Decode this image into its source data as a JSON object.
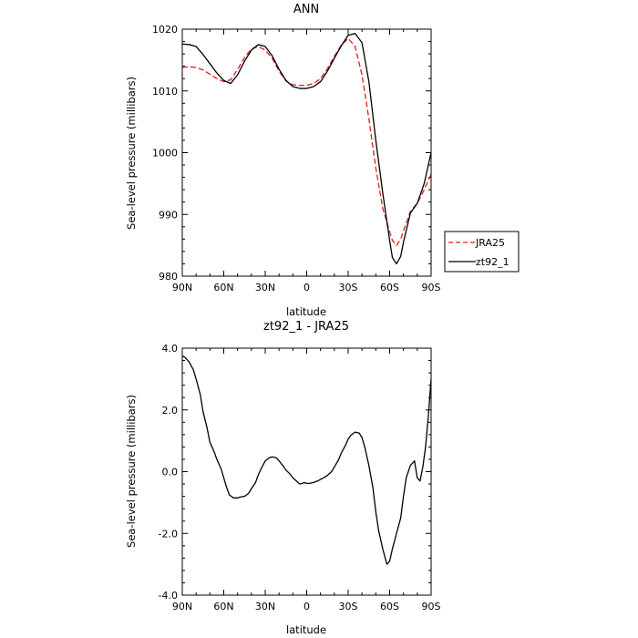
{
  "chart_data": [
    {
      "type": "line",
      "title": "ANN",
      "xlabel": "latitude",
      "ylabel": "Sea-level pressure (millibars)",
      "xlim": [
        90,
        -90
      ],
      "ylim": [
        980,
        1020
      ],
      "x_ticks": [
        90,
        60,
        30,
        0,
        -30,
        -60,
        -90
      ],
      "x_tick_labels": [
        "90N",
        "60N",
        "30N",
        "0",
        "30S",
        "60S",
        "90S"
      ],
      "y_ticks": [
        980,
        990,
        1000,
        1010,
        1020
      ],
      "y_tick_labels": [
        "980",
        "990",
        "1000",
        "1010",
        "1020"
      ],
      "legend_position": "outside-right",
      "series": [
        {
          "name": "JRA25",
          "color": "#e41a1c",
          "style": "dashed",
          "x": [
            90,
            85,
            80,
            75,
            70,
            65,
            60,
            55,
            50,
            45,
            40,
            35,
            30,
            25,
            20,
            15,
            10,
            5,
            0,
            -5,
            -10,
            -15,
            -20,
            -25,
            -30,
            -35,
            -40,
            -45,
            -50,
            -55,
            -60,
            -62,
            -65,
            -68,
            -70,
            -75,
            -80,
            -85,
            -90
          ],
          "values": [
            1013.8,
            1013.9,
            1013.8,
            1013.4,
            1012.7,
            1012.0,
            1011.5,
            1011.8,
            1013.5,
            1015.4,
            1016.8,
            1017.2,
            1016.6,
            1015.3,
            1013.2,
            1011.6,
            1011.0,
            1010.9,
            1010.9,
            1011.2,
            1012.0,
            1013.6,
            1015.6,
            1017.4,
            1018.5,
            1017.2,
            1012.6,
            1005.5,
            997.5,
            991.0,
            987.2,
            985.8,
            985.0,
            986.0,
            987.3,
            990.5,
            991.8,
            994.0,
            996.5
          ]
        },
        {
          "name": "zt92_1",
          "color": "#000000",
          "style": "solid",
          "x": [
            90,
            85,
            80,
            75,
            70,
            65,
            60,
            55,
            50,
            45,
            40,
            35,
            30,
            25,
            20,
            15,
            10,
            5,
            0,
            -5,
            -10,
            -15,
            -20,
            -25,
            -30,
            -35,
            -40,
            -45,
            -50,
            -55,
            -60,
            -62,
            -65,
            -68,
            -70,
            -75,
            -80,
            -85,
            -90
          ],
          "values": [
            1017.6,
            1017.5,
            1017.2,
            1015.9,
            1014.4,
            1012.9,
            1011.7,
            1011.2,
            1012.6,
            1014.8,
            1016.6,
            1017.5,
            1017.2,
            1015.7,
            1013.5,
            1011.7,
            1010.7,
            1010.4,
            1010.4,
            1010.7,
            1011.5,
            1013.2,
            1015.3,
            1017.3,
            1019.0,
            1019.3,
            1017.8,
            1011.5,
            1002.0,
            993.5,
            985.8,
            983.0,
            982.0,
            983.2,
            985.5,
            990.2,
            991.8,
            995.0,
            1000.0
          ]
        }
      ]
    },
    {
      "type": "line",
      "title": "zt92_1 - JRA25",
      "xlabel": "latitude",
      "ylabel": "Sea-level pressure (millibars)",
      "xlim": [
        90,
        -90
      ],
      "ylim": [
        -4.0,
        4.0
      ],
      "x_ticks": [
        90,
        60,
        30,
        0,
        -30,
        -60,
        -90
      ],
      "x_tick_labels": [
        "90N",
        "60N",
        "30N",
        "0",
        "30S",
        "60S",
        "90S"
      ],
      "y_ticks": [
        -4,
        -2,
        0,
        2,
        4
      ],
      "y_tick_labels": [
        "-4.0",
        "-2.0",
        "0.0",
        "2.0",
        "4.0"
      ],
      "series": [
        {
          "color": "#000000",
          "style": "solid",
          "x": [
            90,
            88,
            85,
            82,
            80,
            77,
            75,
            72,
            70,
            67,
            65,
            62,
            60,
            58,
            56,
            53,
            50,
            48,
            45,
            42,
            40,
            37,
            35,
            32,
            30,
            27,
            25,
            22,
            20,
            17,
            15,
            12,
            10,
            7,
            5,
            3,
            2,
            0,
            -2,
            -5,
            -8,
            -10,
            -13,
            -15,
            -18,
            -20,
            -23,
            -25,
            -28,
            -30,
            -32,
            -35,
            -38,
            -40,
            -42,
            -45,
            -48,
            -50,
            -52,
            -55,
            -58,
            -60,
            -62,
            -65,
            -68,
            -70,
            -72,
            -75,
            -78,
            -80,
            -82,
            -84,
            -86,
            -88,
            -90
          ],
          "values": [
            3.75,
            3.7,
            3.55,
            3.3,
            3.0,
            2.5,
            1.95,
            1.4,
            0.95,
            0.65,
            0.4,
            0.1,
            -0.2,
            -0.5,
            -0.75,
            -0.85,
            -0.85,
            -0.82,
            -0.8,
            -0.7,
            -0.55,
            -0.35,
            -0.1,
            0.18,
            0.35,
            0.45,
            0.48,
            0.45,
            0.35,
            0.18,
            0.05,
            -0.08,
            -0.2,
            -0.32,
            -0.4,
            -0.38,
            -0.35,
            -0.38,
            -0.38,
            -0.35,
            -0.3,
            -0.25,
            -0.18,
            -0.12,
            0.0,
            0.15,
            0.38,
            0.6,
            0.85,
            1.05,
            1.18,
            1.28,
            1.25,
            1.1,
            0.8,
            0.2,
            -0.55,
            -1.3,
            -1.9,
            -2.5,
            -3.0,
            -2.9,
            -2.5,
            -2.0,
            -1.5,
            -0.8,
            -0.2,
            0.2,
            0.35,
            -0.2,
            -0.3,
            0.15,
            0.8,
            1.8,
            3.0
          ]
        }
      ]
    }
  ]
}
